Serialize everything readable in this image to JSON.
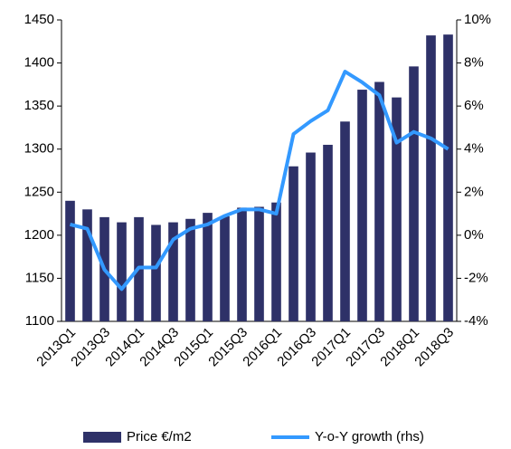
{
  "chart_data": {
    "type": "bar_line",
    "categories": [
      "2013Q1",
      null,
      "2013Q3",
      null,
      "2014Q1",
      null,
      "2014Q3",
      null,
      "2015Q1",
      null,
      "2015Q3",
      null,
      "2016Q1",
      null,
      "2016Q3",
      null,
      "2017Q1",
      null,
      "2017Q3",
      null,
      "2018Q1",
      null,
      "2018Q3"
    ],
    "series": [
      {
        "name": "Price €/m2",
        "type": "bar",
        "color": "#2e3168",
        "values": [
          1240,
          1230,
          1221,
          1215,
          1221,
          1212,
          1215,
          1219,
          1226,
          1222,
          1232,
          1233,
          1238,
          1280,
          1296,
          1305,
          1332,
          1369,
          1378,
          1360,
          1396,
          1432,
          1433
        ]
      },
      {
        "name": "Y-o-Y growth (rhs)",
        "type": "line",
        "axis": "y2",
        "color": "#3399ff",
        "values": [
          0.5,
          0.3,
          -1.6,
          -2.5,
          -1.5,
          -1.5,
          -0.2,
          0.3,
          0.5,
          0.9,
          1.2,
          1.2,
          1.0,
          4.7,
          5.3,
          5.8,
          7.6,
          7.1,
          6.5,
          4.3,
          4.8,
          4.5,
          4.0
        ]
      }
    ],
    "ylim": [
      1100,
      1450
    ],
    "yticks": [
      1100,
      1150,
      1200,
      1250,
      1300,
      1350,
      1400,
      1450
    ],
    "y2lim": [
      -4,
      10
    ],
    "y2ticks": [
      {
        "value": -4,
        "label": "-4%"
      },
      {
        "value": -2,
        "label": "-2%"
      },
      {
        "value": 0,
        "label": "0%"
      },
      {
        "value": 2,
        "label": "2%"
      },
      {
        "value": 4,
        "label": "4%"
      },
      {
        "value": 6,
        "label": "6%"
      },
      {
        "value": 8,
        "label": "8%"
      },
      {
        "value": 10,
        "label": "10%"
      }
    ],
    "grid": false
  }
}
